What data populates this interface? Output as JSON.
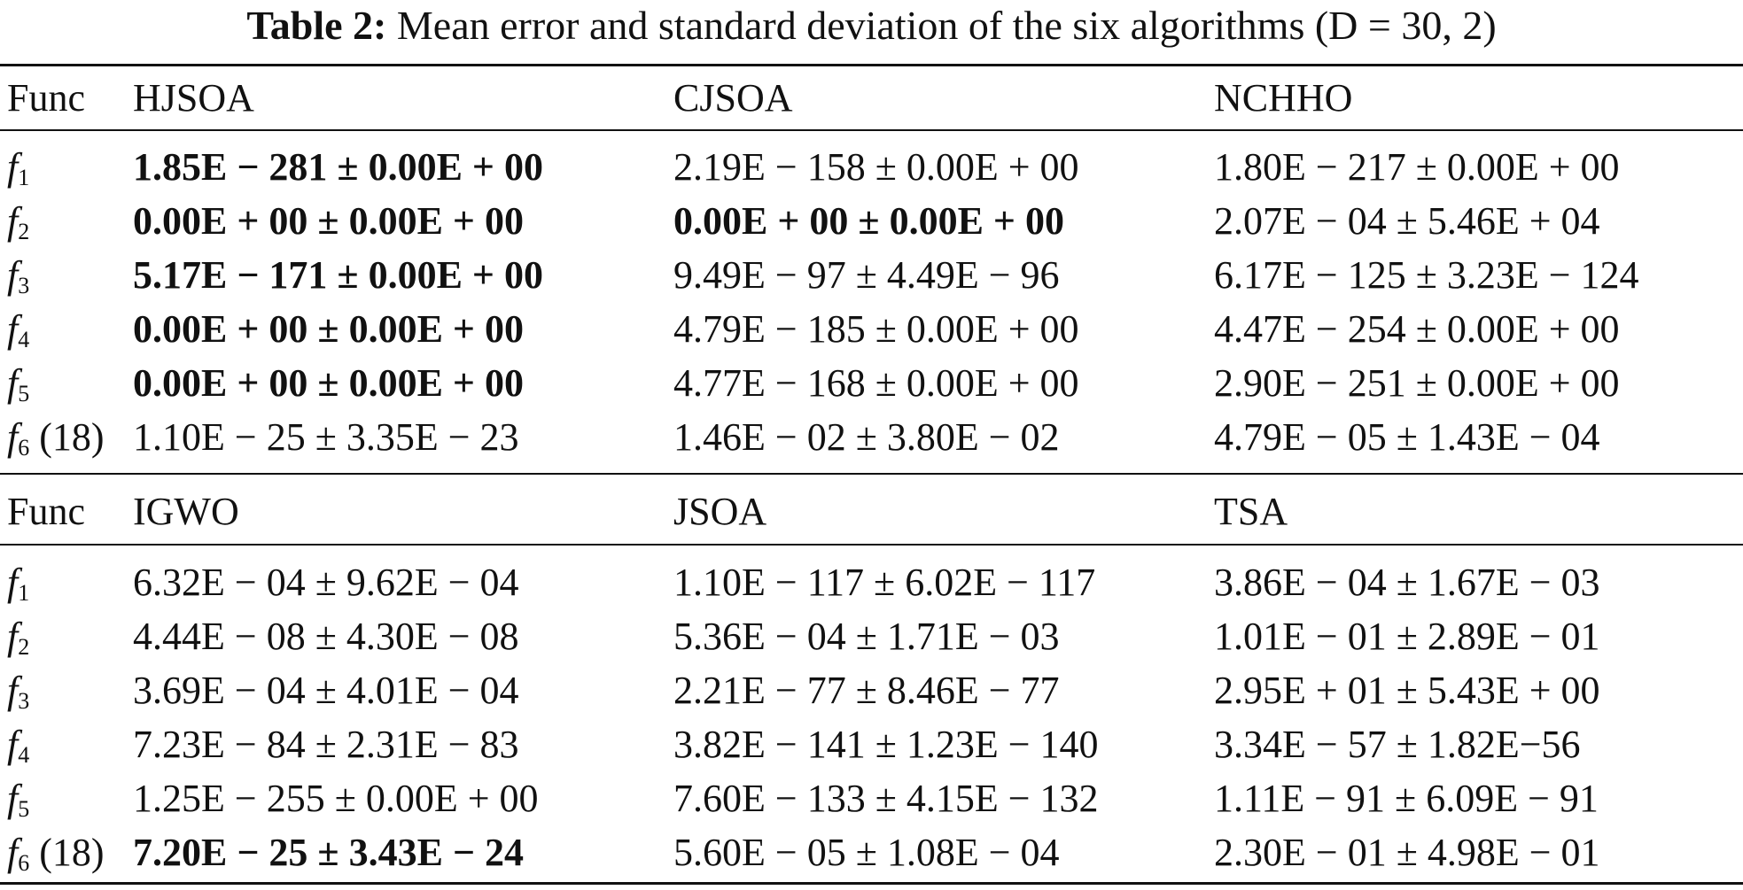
{
  "caption": {
    "label": "Table 2:",
    "text": "Mean error and standard deviation of the six algorithms (D = 30, 2)"
  },
  "blocks": [
    {
      "header": [
        "Func",
        "HJSOA",
        "CJSOA",
        "NCHHO"
      ],
      "rows": [
        {
          "func": "f",
          "sub": "1",
          "suffix": "",
          "cells": [
            "1.85E − 281 ± 0.00E + 00",
            "2.19E − 158 ± 0.00E + 00",
            "1.80E − 217 ± 0.00E + 00"
          ],
          "bold": [
            true,
            false,
            false
          ]
        },
        {
          "func": "f",
          "sub": "2",
          "suffix": "",
          "cells": [
            "0.00E + 00 ± 0.00E + 00",
            "0.00E + 00 ± 0.00E + 00",
            "2.07E − 04 ± 5.46E + 04"
          ],
          "bold": [
            true,
            true,
            false
          ]
        },
        {
          "func": "f",
          "sub": "3",
          "suffix": "",
          "cells": [
            "5.17E − 171 ± 0.00E + 00",
            "9.49E − 97 ± 4.49E − 96",
            "6.17E − 125 ± 3.23E − 124"
          ],
          "bold": [
            true,
            false,
            false
          ]
        },
        {
          "func": "f",
          "sub": "4",
          "suffix": "",
          "cells": [
            "0.00E + 00 ± 0.00E + 00",
            "4.79E − 185 ± 0.00E + 00",
            "4.47E − 254 ± 0.00E + 00"
          ],
          "bold": [
            true,
            false,
            false
          ]
        },
        {
          "func": "f",
          "sub": "5",
          "suffix": "",
          "cells": [
            "0.00E + 00 ± 0.00E + 00",
            "4.77E − 168 ± 0.00E + 00",
            "2.90E − 251 ± 0.00E + 00"
          ],
          "bold": [
            true,
            false,
            false
          ]
        },
        {
          "func": "f",
          "sub": "6",
          "suffix": " (18)",
          "cells": [
            "1.10E − 25 ± 3.35E − 23",
            "1.46E − 02 ± 3.80E − 02",
            "4.79E − 05 ± 1.43E − 04"
          ],
          "bold": [
            false,
            false,
            false
          ]
        }
      ]
    },
    {
      "header": [
        "Func",
        "IGWO",
        "JSOA",
        "TSA"
      ],
      "rows": [
        {
          "func": "f",
          "sub": "1",
          "suffix": "",
          "cells": [
            "6.32E − 04 ± 9.62E − 04",
            "1.10E − 117 ± 6.02E − 117",
            "3.86E − 04 ± 1.67E − 03"
          ],
          "bold": [
            false,
            false,
            false
          ]
        },
        {
          "func": "f",
          "sub": "2",
          "suffix": "",
          "cells": [
            "4.44E − 08 ± 4.30E − 08",
            "5.36E − 04 ± 1.71E − 03",
            "1.01E − 01 ± 2.89E − 01"
          ],
          "bold": [
            false,
            false,
            false
          ]
        },
        {
          "func": "f",
          "sub": "3",
          "suffix": "",
          "cells": [
            "3.69E − 04 ± 4.01E − 04",
            "2.21E − 77 ± 8.46E − 77",
            "2.95E + 01 ± 5.43E + 00"
          ],
          "bold": [
            false,
            false,
            false
          ]
        },
        {
          "func": "f",
          "sub": "4",
          "suffix": "",
          "cells": [
            "7.23E − 84 ± 2.31E − 83",
            "3.82E − 141 ± 1.23E − 140",
            "3.34E − 57 ± 1.82E−56"
          ],
          "bold": [
            false,
            false,
            false
          ]
        },
        {
          "func": "f",
          "sub": "5",
          "suffix": "",
          "cells": [
            "1.25E − 255 ± 0.00E + 00",
            "7.60E − 133 ± 4.15E − 132",
            "1.11E − 91 ± 6.09E − 91"
          ],
          "bold": [
            false,
            false,
            false
          ]
        },
        {
          "func": "f",
          "sub": "6",
          "suffix": " (18)",
          "cells": [
            "7.20E − 25 ± 3.43E − 24",
            "5.60E − 05 ± 1.08E − 04",
            "2.30E − 01 ± 4.98E − 01"
          ],
          "bold": [
            true,
            false,
            false
          ]
        }
      ]
    }
  ]
}
